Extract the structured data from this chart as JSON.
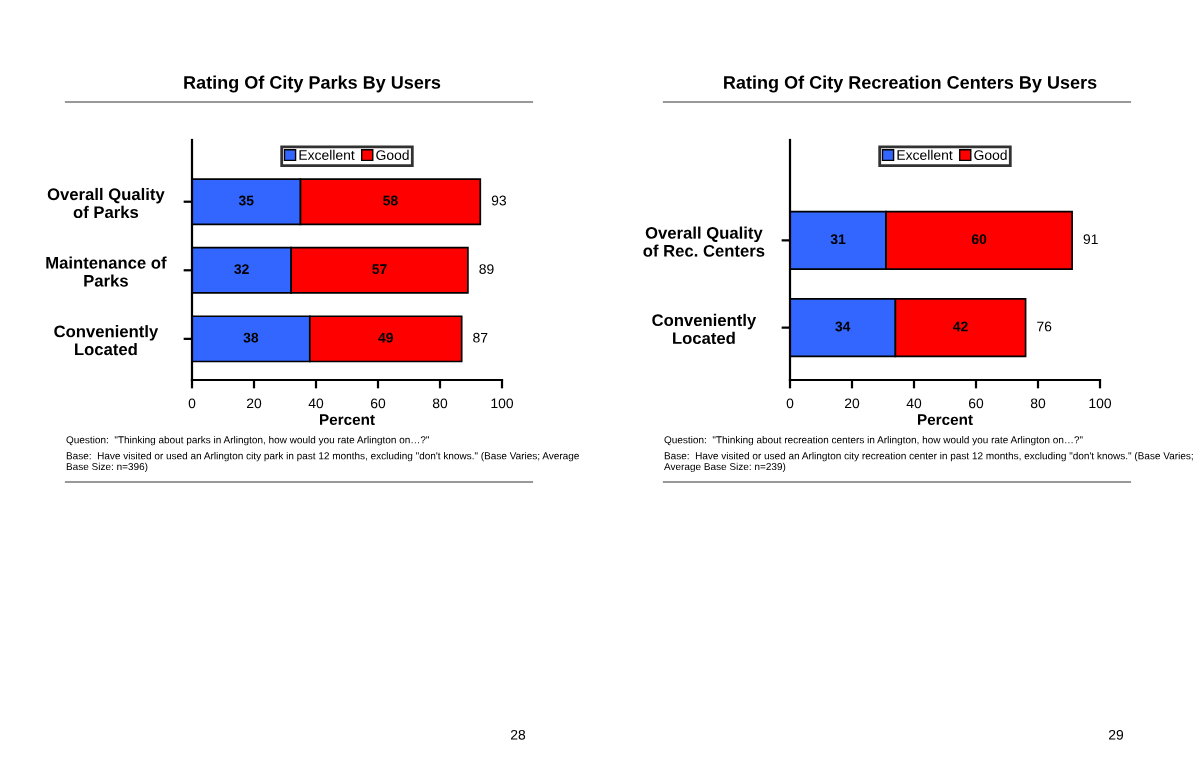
{
  "chart_data": [
    {
      "type": "bar",
      "orientation": "horizontal",
      "stacked": true,
      "title": "Rating Of City Parks By Users",
      "xlabel": "Percent",
      "categories": [
        "Overall Quality\nof Parks",
        "Maintenance of\nParks",
        "Conveniently\nLocated"
      ],
      "series": [
        {
          "name": "Excellent",
          "color": "#3366ff",
          "values": [
            35,
            32,
            38
          ]
        },
        {
          "name": "Good",
          "color": "#ff0000",
          "values": [
            58,
            57,
            49
          ]
        }
      ],
      "totals": [
        "93",
        "89",
        "87"
      ],
      "data_labels": true,
      "legend": "top",
      "xlim": [
        0,
        100
      ],
      "xticks": [
        0,
        20,
        40,
        60,
        80,
        100
      ],
      "grid": false,
      "annotations": [
        "Question:  \"Thinking about parks in Arlington, how would you rate Arlington on…?\"",
        "Base:  Have visited or used an Arlington city park in past 12 months, excluding \"don't knows.\" (Base Varies; Average Base Size: n=396)",
        "28"
      ]
    },
    {
      "type": "bar",
      "orientation": "horizontal",
      "stacked": true,
      "title": "Rating Of City Recreation Centers By Users",
      "xlabel": "Percent",
      "categories": [
        "Overall Quality\nof Rec. Centers",
        "Conveniently\nLocated"
      ],
      "series": [
        {
          "name": "Excellent",
          "color": "#3366ff",
          "values": [
            31,
            34
          ]
        },
        {
          "name": "Good",
          "color": "#ff0000",
          "values": [
            60,
            42
          ]
        }
      ],
      "totals": [
        "91",
        "76"
      ],
      "data_labels": true,
      "legend": "top",
      "xlim": [
        0,
        100
      ],
      "xticks": [
        0,
        20,
        40,
        60,
        80,
        100
      ],
      "grid": false,
      "annotations": [
        "Question:  \"Thinking about recreation centers in Arlington, how would you rate Arlington on…?\"",
        "Base:  Have visited or used an Arlington city recreation center in past 12 months, excluding \"don't knows.\" (Base Varies; Average Base Size: n=239)",
        "29"
      ]
    }
  ]
}
